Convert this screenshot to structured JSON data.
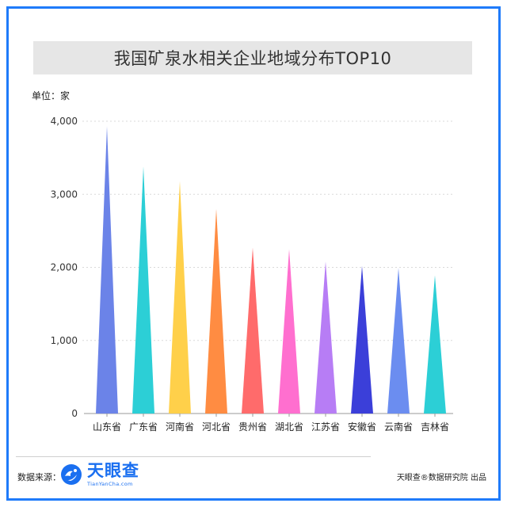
{
  "title": "我国矿泉水相关企业地域分布TOP10",
  "unit_label": "单位：家",
  "footer": {
    "source_label": "数据来源：",
    "logo_name": "天眼查",
    "logo_sub": "TianYanCha.com",
    "credit": "天眼查®数据研究院 出品"
  },
  "colors": {
    "frame": "#1f7bfa",
    "brand": "#1a6ff0"
  },
  "chart_data": {
    "type": "bar",
    "title": "我国矿泉水相关企业地域分布TOP10",
    "ylabel": "单位：家",
    "ylim": [
      0,
      4000
    ],
    "yticks": [
      0,
      1000,
      2000,
      3000,
      4000
    ],
    "ytick_labels": [
      "0",
      "1,000",
      "2,000",
      "3,000",
      "4,000"
    ],
    "grid": true,
    "categories": [
      "山东省",
      "广东省",
      "河南省",
      "河北省",
      "贵州省",
      "湖北省",
      "江苏省",
      "安徽省",
      "云南省",
      "吉林省"
    ],
    "values": [
      3930,
      3380,
      3180,
      2800,
      2270,
      2250,
      2080,
      2020,
      1990,
      1890
    ],
    "bar_colors": [
      "#6b83e8",
      "#2ccfd6",
      "#ffd04a",
      "#ff8c42",
      "#ff6b6b",
      "#ff6fcf",
      "#b77df5",
      "#3b3fd9",
      "#6b8df0",
      "#2ccfd6"
    ]
  }
}
